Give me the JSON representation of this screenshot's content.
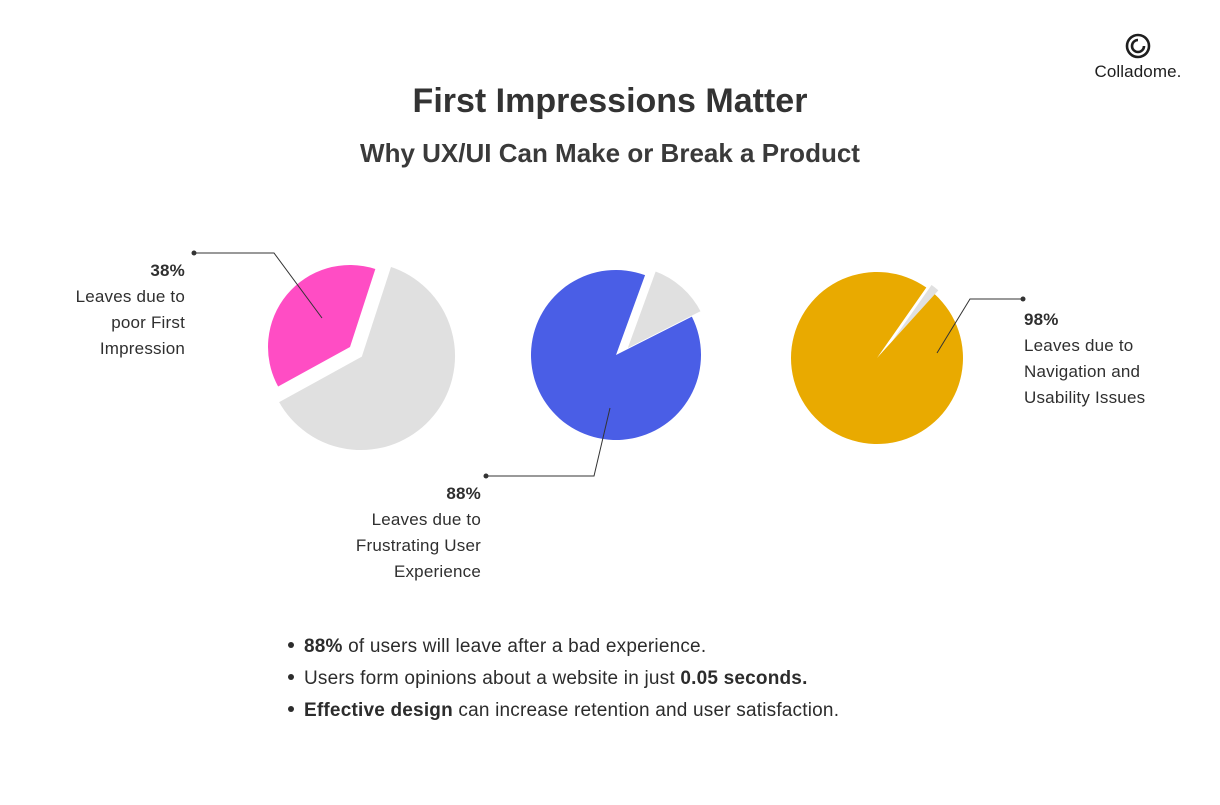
{
  "brand": {
    "logo_text": "Colladome."
  },
  "header": {
    "title": "First Impressions Matter",
    "subtitle": "Why UX/UI Can Make or Break a Product"
  },
  "colors": {
    "pink": "#ff4dc4",
    "blue": "#4a5ee6",
    "gold": "#e9aa00",
    "remainder": "#e0e0e0"
  },
  "chart_data": {
    "type": "pie",
    "charts": [
      {
        "value": 38,
        "remainder": 62,
        "color": "#ff4dc4",
        "label_pct": "38%",
        "label_desc": "Leaves due to\npoor First\nImpression"
      },
      {
        "value": 88,
        "remainder": 12,
        "color": "#4a5ee6",
        "label_pct": "88%",
        "label_desc": "Leaves due to\nFrustrating User\nExperience"
      },
      {
        "value": 98,
        "remainder": 2,
        "color": "#e9aa00",
        "label_pct": "98%",
        "label_desc": "Leaves due to\nNavigation and\nUsability Issues"
      }
    ]
  },
  "bullets": [
    {
      "pre": "",
      "bold": "88%",
      "post": " of users will leave after a bad experience."
    },
    {
      "pre": "Users form opinions about a website in just ",
      "bold": "0.05 seconds.",
      "post": ""
    },
    {
      "pre": "",
      "bold": "Effective design",
      "post": " can increase retention and user satisfaction."
    }
  ]
}
